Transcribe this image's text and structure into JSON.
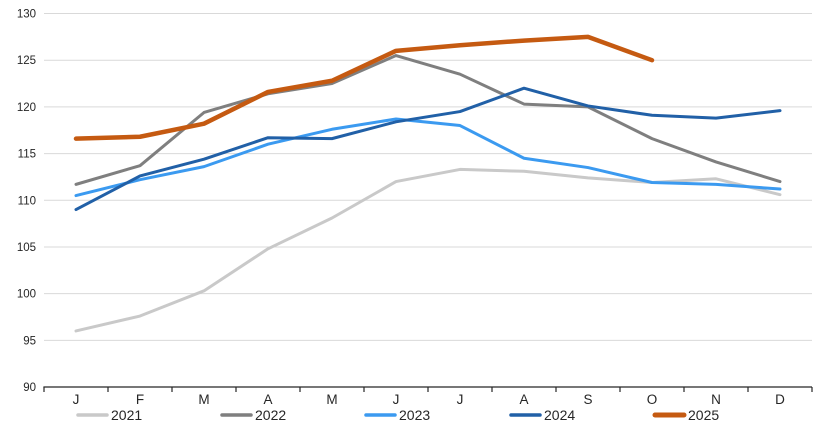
{
  "style": {
    "background": "#FFFFFF",
    "grid_color": "#D9D9D9",
    "axis_color": "#262626",
    "text_color": "#262626"
  },
  "axes": {
    "y_tick_labels": [
      "90",
      "95",
      "100",
      "105",
      "110",
      "115",
      "120",
      "125",
      "130"
    ],
    "x_tick_labels": [
      "J",
      "F",
      "M",
      "A",
      "M",
      "J",
      "J",
      "A",
      "S",
      "O",
      "N",
      "D"
    ]
  },
  "legend": {
    "labels": [
      "2021",
      "2022",
      "2023",
      "2024",
      "2025"
    ]
  },
  "chart_data": {
    "type": "line",
    "title": "",
    "xlabel": "",
    "ylabel": "",
    "categories": [
      "J",
      "F",
      "M",
      "A",
      "M",
      "J",
      "J",
      "A",
      "S",
      "O",
      "N",
      "D"
    ],
    "ylim": [
      90,
      130
    ],
    "ytick_step": 5,
    "grid": "horizontal",
    "legend_position": "bottom",
    "series": [
      {
        "name": "2021",
        "color": "#C9C9C9",
        "stroke_width": 3,
        "values": [
          96.0,
          97.6,
          100.3,
          104.8,
          108.1,
          112.0,
          113.3,
          113.1,
          112.4,
          111.9,
          112.3,
          110.6
        ]
      },
      {
        "name": "2022",
        "color": "#7F7F7F",
        "stroke_width": 3,
        "values": [
          111.7,
          113.7,
          119.4,
          121.4,
          122.5,
          125.5,
          123.5,
          120.3,
          120.0,
          116.6,
          114.1,
          112.0
        ]
      },
      {
        "name": "2023",
        "color": "#3B9AF0",
        "stroke_width": 3,
        "values": [
          110.5,
          112.2,
          113.6,
          116.0,
          117.6,
          118.7,
          118.0,
          114.5,
          113.5,
          111.9,
          111.7,
          111.2
        ]
      },
      {
        "name": "2024",
        "color": "#2160A7",
        "stroke_width": 3,
        "values": [
          109.0,
          112.6,
          114.4,
          116.7,
          116.6,
          118.4,
          119.5,
          122.0,
          120.1,
          119.1,
          118.8,
          119.6
        ]
      },
      {
        "name": "2025",
        "color": "#C55A11",
        "stroke_width": 4.5,
        "values": [
          116.6,
          116.8,
          118.2,
          121.6,
          122.8,
          126.0,
          126.6,
          127.1,
          127.5,
          125.0,
          null,
          null
        ]
      }
    ]
  }
}
